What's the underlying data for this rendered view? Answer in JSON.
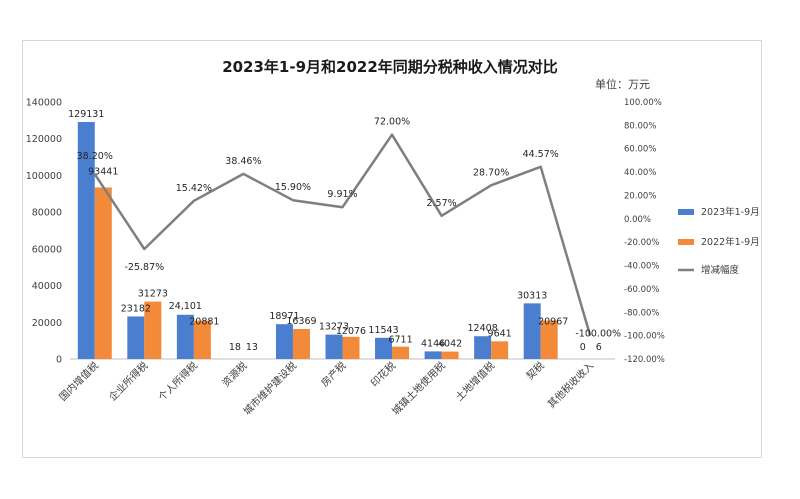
{
  "chart_data": {
    "type": "bar",
    "title": "2023年1-9月和2022年同期分税种收入情况对比",
    "unit_label": "单位：万元",
    "categories": [
      "国内增值税",
      "企业所得税",
      "个人所得税",
      "资源税",
      "城市维护建设税",
      "房产税",
      "印花税",
      "城镇土地使用税",
      "土地增值税",
      "契税",
      "其他税收收入"
    ],
    "series": [
      {
        "name": "2023年1-9月",
        "kind": "bar",
        "color": "#4a7fd0",
        "values": [
          129131,
          23182,
          24101,
          18,
          18971,
          13273,
          11543,
          4146,
          12408,
          30313,
          0
        ],
        "labels": [
          "129131",
          "23182",
          "24,101",
          "18",
          "18971",
          "13273",
          "11543",
          "4146",
          "12408",
          "30313",
          "0"
        ]
      },
      {
        "name": "2022年1-9月",
        "kind": "bar",
        "color": "#f28a3a",
        "values": [
          93441,
          31273,
          20881,
          13,
          16369,
          12076,
          6711,
          4042,
          9641,
          20967,
          6
        ],
        "labels": [
          "93441",
          "31273",
          "20881",
          "13",
          "16369",
          "12076",
          "6711",
          "4042",
          "9641",
          "20967",
          "6"
        ]
      },
      {
        "name": "增减幅度",
        "kind": "line",
        "axis": "right",
        "color": "#7f7f7f",
        "values": [
          38.2,
          -25.87,
          15.42,
          38.46,
          15.9,
          9.91,
          72.0,
          2.57,
          28.7,
          44.57,
          -100.0
        ],
        "labels": [
          "38.20%",
          "-25.87%",
          "15.42%",
          "38.46%",
          "15.90%",
          "9.91%",
          "72.00%",
          "2.57%",
          "28.70%",
          "44.57%",
          "-100.00%"
        ]
      }
    ],
    "ylim": [
      0,
      140000
    ],
    "yticks": [
      "0",
      "20000",
      "40000",
      "60000",
      "80000",
      "100000",
      "120000",
      "140000"
    ],
    "y2lim": [
      -120,
      100
    ],
    "y2ticks": [
      "-120.00%",
      "-100.00%",
      "-80.00%",
      "-60.00%",
      "-40.00%",
      "-20.00%",
      "0.00%",
      "20.00%",
      "40.00%",
      "60.00%",
      "80.00%",
      "100.00%"
    ],
    "legend_position": "right",
    "grid": false
  }
}
